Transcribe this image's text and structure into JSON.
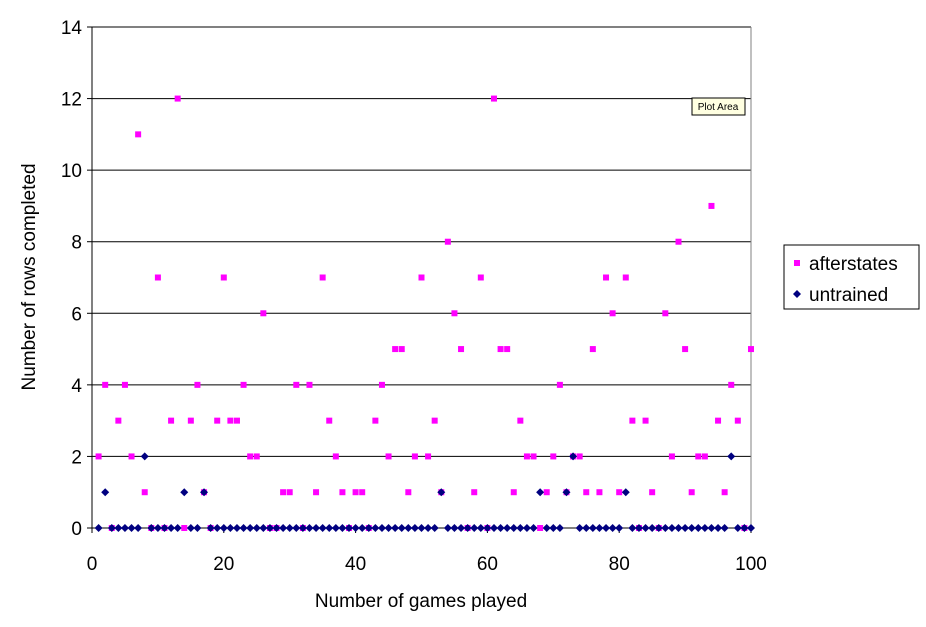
{
  "chart_data": {
    "type": "scatter",
    "xlabel": "Number of games played",
    "ylabel": "Number of rows completed",
    "xlim": [
      0,
      100
    ],
    "ylim": [
      0,
      14
    ],
    "xticks": [
      0,
      20,
      40,
      60,
      80,
      100
    ],
    "yticks": [
      0,
      2,
      4,
      6,
      8,
      10,
      12,
      14
    ],
    "grid": "horizontal major gridlines",
    "legend_position": "right",
    "tooltip": "Plot Area",
    "series": [
      {
        "name": "afterstates",
        "color": "#ff00ff",
        "marker": "square",
        "points": [
          [
            1,
            2
          ],
          [
            2,
            4
          ],
          [
            3,
            0
          ],
          [
            4,
            3
          ],
          [
            5,
            4
          ],
          [
            6,
            2
          ],
          [
            7,
            11
          ],
          [
            8,
            1
          ],
          [
            9,
            0
          ],
          [
            10,
            7
          ],
          [
            11,
            0
          ],
          [
            12,
            3
          ],
          [
            13,
            12
          ],
          [
            14,
            0
          ],
          [
            15,
            3
          ],
          [
            16,
            4
          ],
          [
            17,
            1
          ],
          [
            18,
            0
          ],
          [
            19,
            3
          ],
          [
            20,
            7
          ],
          [
            21,
            3
          ],
          [
            22,
            3
          ],
          [
            23,
            4
          ],
          [
            24,
            2
          ],
          [
            25,
            2
          ],
          [
            26,
            6
          ],
          [
            27,
            0
          ],
          [
            28,
            0
          ],
          [
            29,
            1
          ],
          [
            30,
            1
          ],
          [
            31,
            4
          ],
          [
            32,
            0
          ],
          [
            33,
            4
          ],
          [
            34,
            1
          ],
          [
            35,
            7
          ],
          [
            36,
            3
          ],
          [
            37,
            2
          ],
          [
            38,
            1
          ],
          [
            39,
            0
          ],
          [
            40,
            1
          ],
          [
            41,
            1
          ],
          [
            42,
            0
          ],
          [
            43,
            3
          ],
          [
            44,
            4
          ],
          [
            45,
            2
          ],
          [
            46,
            5
          ],
          [
            47,
            5
          ],
          [
            48,
            1
          ],
          [
            49,
            2
          ],
          [
            50,
            7
          ],
          [
            51,
            2
          ],
          [
            52,
            3
          ],
          [
            53,
            1
          ],
          [
            54,
            8
          ],
          [
            55,
            6
          ],
          [
            56,
            5
          ],
          [
            57,
            0
          ],
          [
            58,
            1
          ],
          [
            59,
            7
          ],
          [
            60,
            0
          ],
          [
            61,
            12
          ],
          [
            62,
            5
          ],
          [
            63,
            5
          ],
          [
            64,
            1
          ],
          [
            65,
            3
          ],
          [
            66,
            2
          ],
          [
            67,
            2
          ],
          [
            68,
            0
          ],
          [
            69,
            1
          ],
          [
            70,
            2
          ],
          [
            71,
            4
          ],
          [
            72,
            1
          ],
          [
            73,
            2
          ],
          [
            74,
            2
          ],
          [
            75,
            1
          ],
          [
            76,
            5
          ],
          [
            77,
            1
          ],
          [
            78,
            7
          ],
          [
            79,
            6
          ],
          [
            80,
            1
          ],
          [
            81,
            7
          ],
          [
            82,
            3
          ],
          [
            83,
            0
          ],
          [
            84,
            3
          ],
          [
            85,
            1
          ],
          [
            86,
            0
          ],
          [
            87,
            6
          ],
          [
            88,
            2
          ],
          [
            89,
            8
          ],
          [
            90,
            5
          ],
          [
            91,
            1
          ],
          [
            92,
            2
          ],
          [
            93,
            2
          ],
          [
            94,
            9
          ],
          [
            95,
            3
          ],
          [
            96,
            1
          ],
          [
            97,
            4
          ],
          [
            98,
            3
          ],
          [
            99,
            0
          ],
          [
            100,
            5
          ]
        ]
      },
      {
        "name": "untrained",
        "color": "#000080",
        "marker": "diamond",
        "points": [
          [
            1,
            0
          ],
          [
            2,
            1
          ],
          [
            3,
            0
          ],
          [
            4,
            0
          ],
          [
            5,
            0
          ],
          [
            6,
            0
          ],
          [
            7,
            0
          ],
          [
            8,
            2
          ],
          [
            9,
            0
          ],
          [
            10,
            0
          ],
          [
            11,
            0
          ],
          [
            12,
            0
          ],
          [
            13,
            0
          ],
          [
            14,
            1
          ],
          [
            15,
            0
          ],
          [
            16,
            0
          ],
          [
            17,
            1
          ],
          [
            18,
            0
          ],
          [
            19,
            0
          ],
          [
            20,
            0
          ],
          [
            21,
            0
          ],
          [
            22,
            0
          ],
          [
            23,
            0
          ],
          [
            24,
            0
          ],
          [
            25,
            0
          ],
          [
            26,
            0
          ],
          [
            27,
            0
          ],
          [
            28,
            0
          ],
          [
            29,
            0
          ],
          [
            30,
            0
          ],
          [
            31,
            0
          ],
          [
            32,
            0
          ],
          [
            33,
            0
          ],
          [
            34,
            0
          ],
          [
            35,
            0
          ],
          [
            36,
            0
          ],
          [
            37,
            0
          ],
          [
            38,
            0
          ],
          [
            39,
            0
          ],
          [
            40,
            0
          ],
          [
            41,
            0
          ],
          [
            42,
            0
          ],
          [
            43,
            0
          ],
          [
            44,
            0
          ],
          [
            45,
            0
          ],
          [
            46,
            0
          ],
          [
            47,
            0
          ],
          [
            48,
            0
          ],
          [
            49,
            0
          ],
          [
            50,
            0
          ],
          [
            51,
            0
          ],
          [
            52,
            0
          ],
          [
            53,
            1
          ],
          [
            54,
            0
          ],
          [
            55,
            0
          ],
          [
            56,
            0
          ],
          [
            57,
            0
          ],
          [
            58,
            0
          ],
          [
            59,
            0
          ],
          [
            60,
            0
          ],
          [
            61,
            0
          ],
          [
            62,
            0
          ],
          [
            63,
            0
          ],
          [
            64,
            0
          ],
          [
            65,
            0
          ],
          [
            66,
            0
          ],
          [
            67,
            0
          ],
          [
            68,
            1
          ],
          [
            69,
            0
          ],
          [
            70,
            0
          ],
          [
            71,
            0
          ],
          [
            72,
            1
          ],
          [
            73,
            2
          ],
          [
            74,
            0
          ],
          [
            75,
            0
          ],
          [
            76,
            0
          ],
          [
            77,
            0
          ],
          [
            78,
            0
          ],
          [
            79,
            0
          ],
          [
            80,
            0
          ],
          [
            81,
            1
          ],
          [
            82,
            0
          ],
          [
            83,
            0
          ],
          [
            84,
            0
          ],
          [
            85,
            0
          ],
          [
            86,
            0
          ],
          [
            87,
            0
          ],
          [
            88,
            0
          ],
          [
            89,
            0
          ],
          [
            90,
            0
          ],
          [
            91,
            0
          ],
          [
            92,
            0
          ],
          [
            93,
            0
          ],
          [
            94,
            0
          ],
          [
            95,
            0
          ],
          [
            96,
            0
          ],
          [
            97,
            2
          ],
          [
            98,
            0
          ],
          [
            99,
            0
          ],
          [
            100,
            0
          ]
        ]
      }
    ]
  }
}
